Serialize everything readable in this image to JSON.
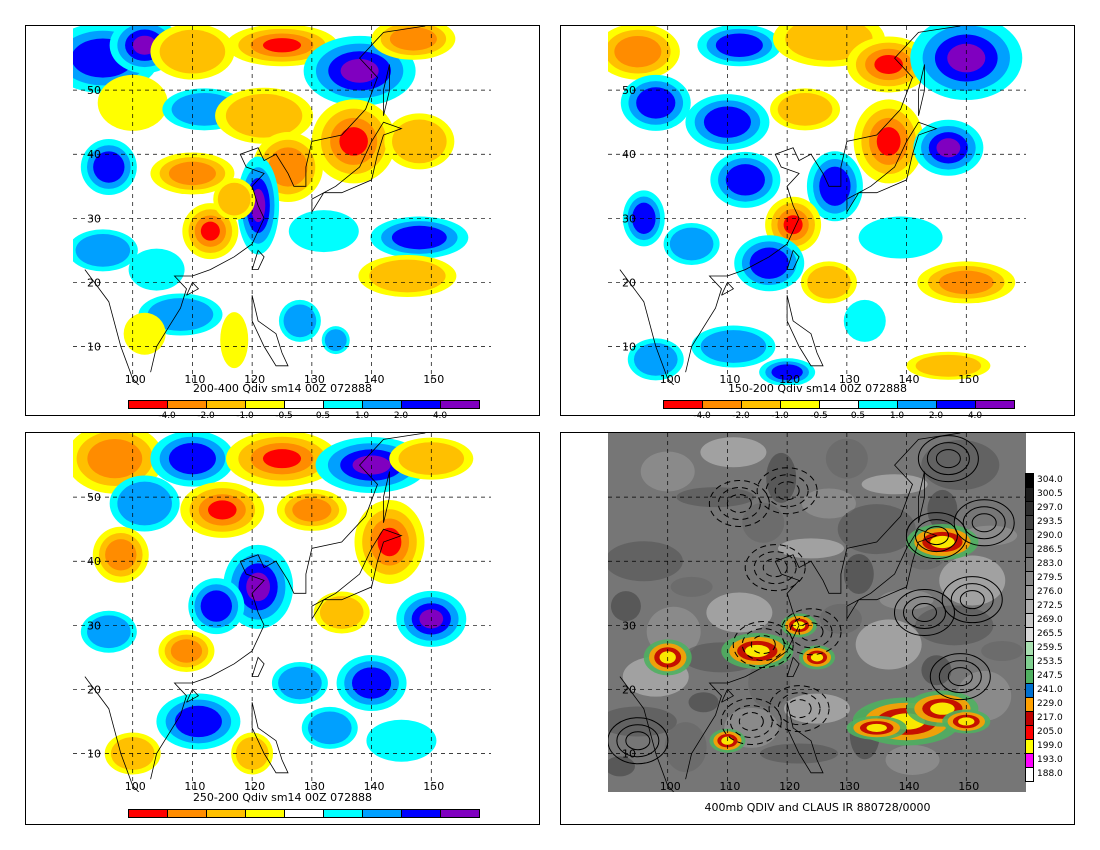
{
  "palette_div": [
    "#ff0000",
    "#ff8c00",
    "#ffc000",
    "#ffff00",
    "#ffffff",
    "#00ffff",
    "#00a0ff",
    "#0000ff",
    "#8000c0"
  ],
  "panels": [
    {
      "id": "p1",
      "caption": "200-400 Qdiv sm14 00Z 072888",
      "show_ticklabels": true,
      "lat_labels": [
        "50",
        "40",
        "30",
        "20",
        "10"
      ],
      "lon_labels": [
        "100",
        "110",
        "120",
        "130",
        "140",
        "150"
      ]
    },
    {
      "id": "p2",
      "caption": "150-200 Qdiv sm14 00Z 072888",
      "show_ticklabels": true,
      "lat_labels": [
        "50",
        "40",
        "30",
        "20",
        "10"
      ],
      "lon_labels": [
        "100",
        "110",
        "120",
        "130",
        "140",
        "150"
      ]
    },
    {
      "id": "p3",
      "caption": "250-200 Qdiv sm14 00Z 072888",
      "show_ticklabels": true,
      "lat_labels": [
        "50",
        "40",
        "30",
        "20",
        "10"
      ],
      "lon_labels": [
        "100",
        "110",
        "120",
        "130",
        "140",
        "150"
      ]
    },
    {
      "id": "p4",
      "caption": "400mb QDIV and CLAUS IR 880728/0000",
      "show_ticklabels": true,
      "lat_labels": [
        "30",
        "20",
        "10"
      ],
      "lon_labels": [
        "100",
        "110",
        "120",
        "130",
        "140",
        "150"
      ]
    }
  ],
  "colorbar_div": {
    "labels": [
      "-4.0",
      "-2.0",
      "-1.0",
      "-0.5",
      "0.5",
      "1.0",
      "2.0",
      "4.0"
    ]
  },
  "colorbar_ir": {
    "labels": [
      "304.0",
      "300.5",
      "297.0",
      "293.5",
      "290.0",
      "286.5",
      "283.0",
      "279.5",
      "276.0",
      "272.5",
      "269.0",
      "265.5",
      "259.5",
      "253.5",
      "247.5",
      "241.0",
      "229.0",
      "217.0",
      "205.0",
      "199.0",
      "193.0",
      "188.0"
    ],
    "colors": [
      "#000000",
      "#1c1c1c",
      "#2e2e2e",
      "#404040",
      "#525252",
      "#646464",
      "#767676",
      "#888888",
      "#9a9a9a",
      "#acacac",
      "#c4c4c4",
      "#d8d8d8",
      "#a8e0b0",
      "#7fd090",
      "#4fb060",
      "#0070d0",
      "#ffa000",
      "#c00000",
      "#ff0000",
      "#ffff00",
      "#ff00ff",
      "#ffffff"
    ]
  }
}
